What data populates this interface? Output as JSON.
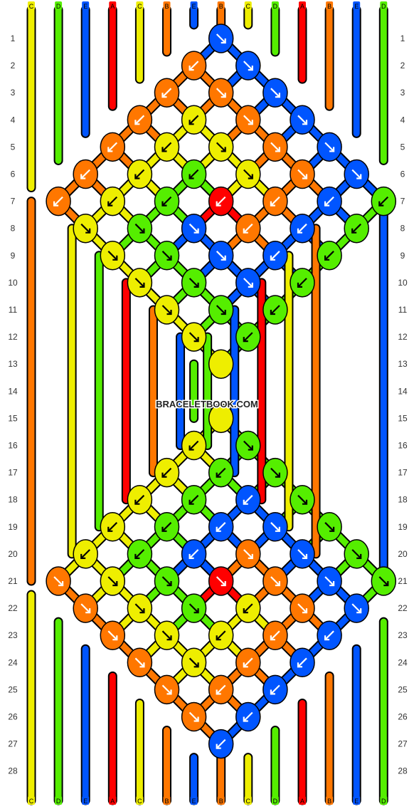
{
  "watermark": "BRACELETBOOK.COM",
  "colors": {
    "A": "#ff0000",
    "B": "#ff7700",
    "C": "#eeee00",
    "D": "#55ee00",
    "E": "#0055ff"
  },
  "strings_top": [
    "C",
    "D",
    "E",
    "A",
    "C",
    "B",
    "E",
    "B",
    "C",
    "D",
    "A",
    "B",
    "E",
    "D"
  ],
  "strings_bottom": [
    "C",
    "D",
    "E",
    "A",
    "C",
    "B",
    "E",
    "B",
    "C",
    "D",
    "A",
    "B",
    "E",
    "D"
  ],
  "row_numbers": [
    "1",
    "2",
    "3",
    "4",
    "5",
    "6",
    "7",
    "8",
    "9",
    "10",
    "11",
    "12",
    "13",
    "14",
    "15",
    "16",
    "17",
    "18",
    "19",
    "20",
    "21",
    "22",
    "23",
    "24",
    "25",
    "26",
    "27",
    "28"
  ],
  "knots": [
    {
      "row": 1,
      "col": 7,
      "color": "E",
      "dir": "down-right"
    },
    {
      "row": 2,
      "col": 6,
      "color": "B",
      "dir": "down-left"
    },
    {
      "row": 2,
      "col": 8,
      "color": "E",
      "dir": "down-right"
    },
    {
      "row": 3,
      "col": 5,
      "color": "B",
      "dir": "down-left"
    },
    {
      "row": 3,
      "col": 7,
      "color": "B",
      "dir": "down-right"
    },
    {
      "row": 3,
      "col": 9,
      "color": "E",
      "dir": "down-right"
    },
    {
      "row": 4,
      "col": 4,
      "color": "B",
      "dir": "down-left"
    },
    {
      "row": 4,
      "col": 6,
      "color": "C",
      "dir": "down-left"
    },
    {
      "row": 4,
      "col": 8,
      "color": "B",
      "dir": "down-right"
    },
    {
      "row": 4,
      "col": 10,
      "color": "E",
      "dir": "down-right"
    },
    {
      "row": 5,
      "col": 3,
      "color": "B",
      "dir": "down-left"
    },
    {
      "row": 5,
      "col": 5,
      "color": "C",
      "dir": "down-left"
    },
    {
      "row": 5,
      "col": 7,
      "color": "C",
      "dir": "down-right"
    },
    {
      "row": 5,
      "col": 9,
      "color": "B",
      "dir": "down-right"
    },
    {
      "row": 5,
      "col": 11,
      "color": "E",
      "dir": "down-right"
    },
    {
      "row": 6,
      "col": 2,
      "color": "B",
      "dir": "down-left"
    },
    {
      "row": 6,
      "col": 4,
      "color": "C",
      "dir": "down-left"
    },
    {
      "row": 6,
      "col": 6,
      "color": "D",
      "dir": "down-left"
    },
    {
      "row": 6,
      "col": 8,
      "color": "C",
      "dir": "down-right"
    },
    {
      "row": 6,
      "col": 10,
      "color": "B",
      "dir": "down-right"
    },
    {
      "row": 6,
      "col": 12,
      "color": "E",
      "dir": "down-right"
    },
    {
      "row": 7,
      "col": 1,
      "color": "B",
      "dir": "down-left"
    },
    {
      "row": 7,
      "col": 3,
      "color": "C",
      "dir": "down-left"
    },
    {
      "row": 7,
      "col": 5,
      "color": "D",
      "dir": "down-left"
    },
    {
      "row": 7,
      "col": 7,
      "color": "A",
      "dir": "down-left"
    },
    {
      "row": 7,
      "col": 9,
      "color": "B",
      "dir": "down-left"
    },
    {
      "row": 7,
      "col": 11,
      "color": "E",
      "dir": "down-left"
    },
    {
      "row": 7,
      "col": 13,
      "color": "D",
      "dir": "down-left"
    },
    {
      "row": 8,
      "col": 2,
      "color": "C",
      "dir": "down-right"
    },
    {
      "row": 8,
      "col": 4,
      "color": "D",
      "dir": "down-right"
    },
    {
      "row": 8,
      "col": 6,
      "color": "E",
      "dir": "down-right"
    },
    {
      "row": 8,
      "col": 8,
      "color": "B",
      "dir": "down-left"
    },
    {
      "row": 8,
      "col": 10,
      "color": "E",
      "dir": "down-left"
    },
    {
      "row": 8,
      "col": 12,
      "color": "D",
      "dir": "down-left"
    },
    {
      "row": 9,
      "col": 3,
      "color": "C",
      "dir": "down-right"
    },
    {
      "row": 9,
      "col": 5,
      "color": "D",
      "dir": "down-right"
    },
    {
      "row": 9,
      "col": 7,
      "color": "E",
      "dir": "down-right"
    },
    {
      "row": 9,
      "col": 9,
      "color": "E",
      "dir": "down-left"
    },
    {
      "row": 9,
      "col": 11,
      "color": "D",
      "dir": "down-left"
    },
    {
      "row": 10,
      "col": 4,
      "color": "C",
      "dir": "down-right"
    },
    {
      "row": 10,
      "col": 6,
      "color": "D",
      "dir": "down-right"
    },
    {
      "row": 10,
      "col": 8,
      "color": "E",
      "dir": "down-right"
    },
    {
      "row": 10,
      "col": 10,
      "color": "D",
      "dir": "down-left"
    },
    {
      "row": 11,
      "col": 5,
      "color": "C",
      "dir": "down-right"
    },
    {
      "row": 11,
      "col": 7,
      "color": "D",
      "dir": "down-right"
    },
    {
      "row": 11,
      "col": 9,
      "color": "D",
      "dir": "down-left"
    },
    {
      "row": 12,
      "col": 6,
      "color": "C",
      "dir": "down-right"
    },
    {
      "row": 12,
      "col": 8,
      "color": "D",
      "dir": "down-left"
    },
    {
      "row": 13,
      "col": 7,
      "color": "C",
      "dir": "none"
    },
    {
      "row": 15,
      "col": 7,
      "color": "C",
      "dir": "none"
    },
    {
      "row": 16,
      "col": 6,
      "color": "C",
      "dir": "down-left"
    },
    {
      "row": 16,
      "col": 8,
      "color": "D",
      "dir": "down-right"
    },
    {
      "row": 17,
      "col": 5,
      "color": "C",
      "dir": "down-left"
    },
    {
      "row": 17,
      "col": 7,
      "color": "D",
      "dir": "down-left"
    },
    {
      "row": 17,
      "col": 9,
      "color": "D",
      "dir": "down-right"
    },
    {
      "row": 18,
      "col": 4,
      "color": "C",
      "dir": "down-left"
    },
    {
      "row": 18,
      "col": 6,
      "color": "D",
      "dir": "down-left"
    },
    {
      "row": 18,
      "col": 8,
      "color": "E",
      "dir": "down-left"
    },
    {
      "row": 18,
      "col": 10,
      "color": "D",
      "dir": "down-right"
    },
    {
      "row": 19,
      "col": 3,
      "color": "C",
      "dir": "down-left"
    },
    {
      "row": 19,
      "col": 5,
      "color": "D",
      "dir": "down-left"
    },
    {
      "row": 19,
      "col": 7,
      "color": "E",
      "dir": "down-left"
    },
    {
      "row": 19,
      "col": 9,
      "color": "E",
      "dir": "down-right"
    },
    {
      "row": 19,
      "col": 11,
      "color": "D",
      "dir": "down-right"
    },
    {
      "row": 20,
      "col": 2,
      "color": "C",
      "dir": "down-left"
    },
    {
      "row": 20,
      "col": 4,
      "color": "D",
      "dir": "down-left"
    },
    {
      "row": 20,
      "col": 6,
      "color": "E",
      "dir": "down-left"
    },
    {
      "row": 20,
      "col": 8,
      "color": "B",
      "dir": "down-right"
    },
    {
      "row": 20,
      "col": 10,
      "color": "E",
      "dir": "down-right"
    },
    {
      "row": 20,
      "col": 12,
      "color": "D",
      "dir": "down-right"
    },
    {
      "row": 21,
      "col": 1,
      "color": "B",
      "dir": "down-right"
    },
    {
      "row": 21,
      "col": 3,
      "color": "C",
      "dir": "down-right"
    },
    {
      "row": 21,
      "col": 5,
      "color": "D",
      "dir": "down-right"
    },
    {
      "row": 21,
      "col": 7,
      "color": "A",
      "dir": "down-right"
    },
    {
      "row": 21,
      "col": 9,
      "color": "B",
      "dir": "down-right"
    },
    {
      "row": 21,
      "col": 11,
      "color": "E",
      "dir": "down-right"
    },
    {
      "row": 21,
      "col": 13,
      "color": "D",
      "dir": "down-right"
    },
    {
      "row": 22,
      "col": 2,
      "color": "B",
      "dir": "down-right"
    },
    {
      "row": 22,
      "col": 4,
      "color": "C",
      "dir": "down-right"
    },
    {
      "row": 22,
      "col": 6,
      "color": "D",
      "dir": "down-right"
    },
    {
      "row": 22,
      "col": 8,
      "color": "C",
      "dir": "down-left"
    },
    {
      "row": 22,
      "col": 10,
      "color": "B",
      "dir": "down-right"
    },
    {
      "row": 22,
      "col": 12,
      "color": "E",
      "dir": "down-right"
    },
    {
      "row": 23,
      "col": 3,
      "color": "B",
      "dir": "down-right"
    },
    {
      "row": 23,
      "col": 5,
      "color": "C",
      "dir": "down-right"
    },
    {
      "row": 23,
      "col": 7,
      "color": "C",
      "dir": "down-left"
    },
    {
      "row": 23,
      "col": 9,
      "color": "B",
      "dir": "down-left"
    },
    {
      "row": 23,
      "col": 11,
      "color": "E",
      "dir": "down-left"
    },
    {
      "row": 24,
      "col": 4,
      "color": "B",
      "dir": "down-right"
    },
    {
      "row": 24,
      "col": 6,
      "color": "C",
      "dir": "down-right"
    },
    {
      "row": 24,
      "col": 8,
      "color": "B",
      "dir": "down-left"
    },
    {
      "row": 24,
      "col": 10,
      "color": "E",
      "dir": "down-left"
    },
    {
      "row": 25,
      "col": 5,
      "color": "B",
      "dir": "down-right"
    },
    {
      "row": 25,
      "col": 7,
      "color": "B",
      "dir": "down-left"
    },
    {
      "row": 25,
      "col": 9,
      "color": "E",
      "dir": "down-left"
    },
    {
      "row": 26,
      "col": 6,
      "color": "B",
      "dir": "down-right"
    },
    {
      "row": 26,
      "col": 8,
      "color": "E",
      "dir": "down-left"
    },
    {
      "row": 27,
      "col": 7,
      "color": "E",
      "dir": "down-left"
    }
  ]
}
